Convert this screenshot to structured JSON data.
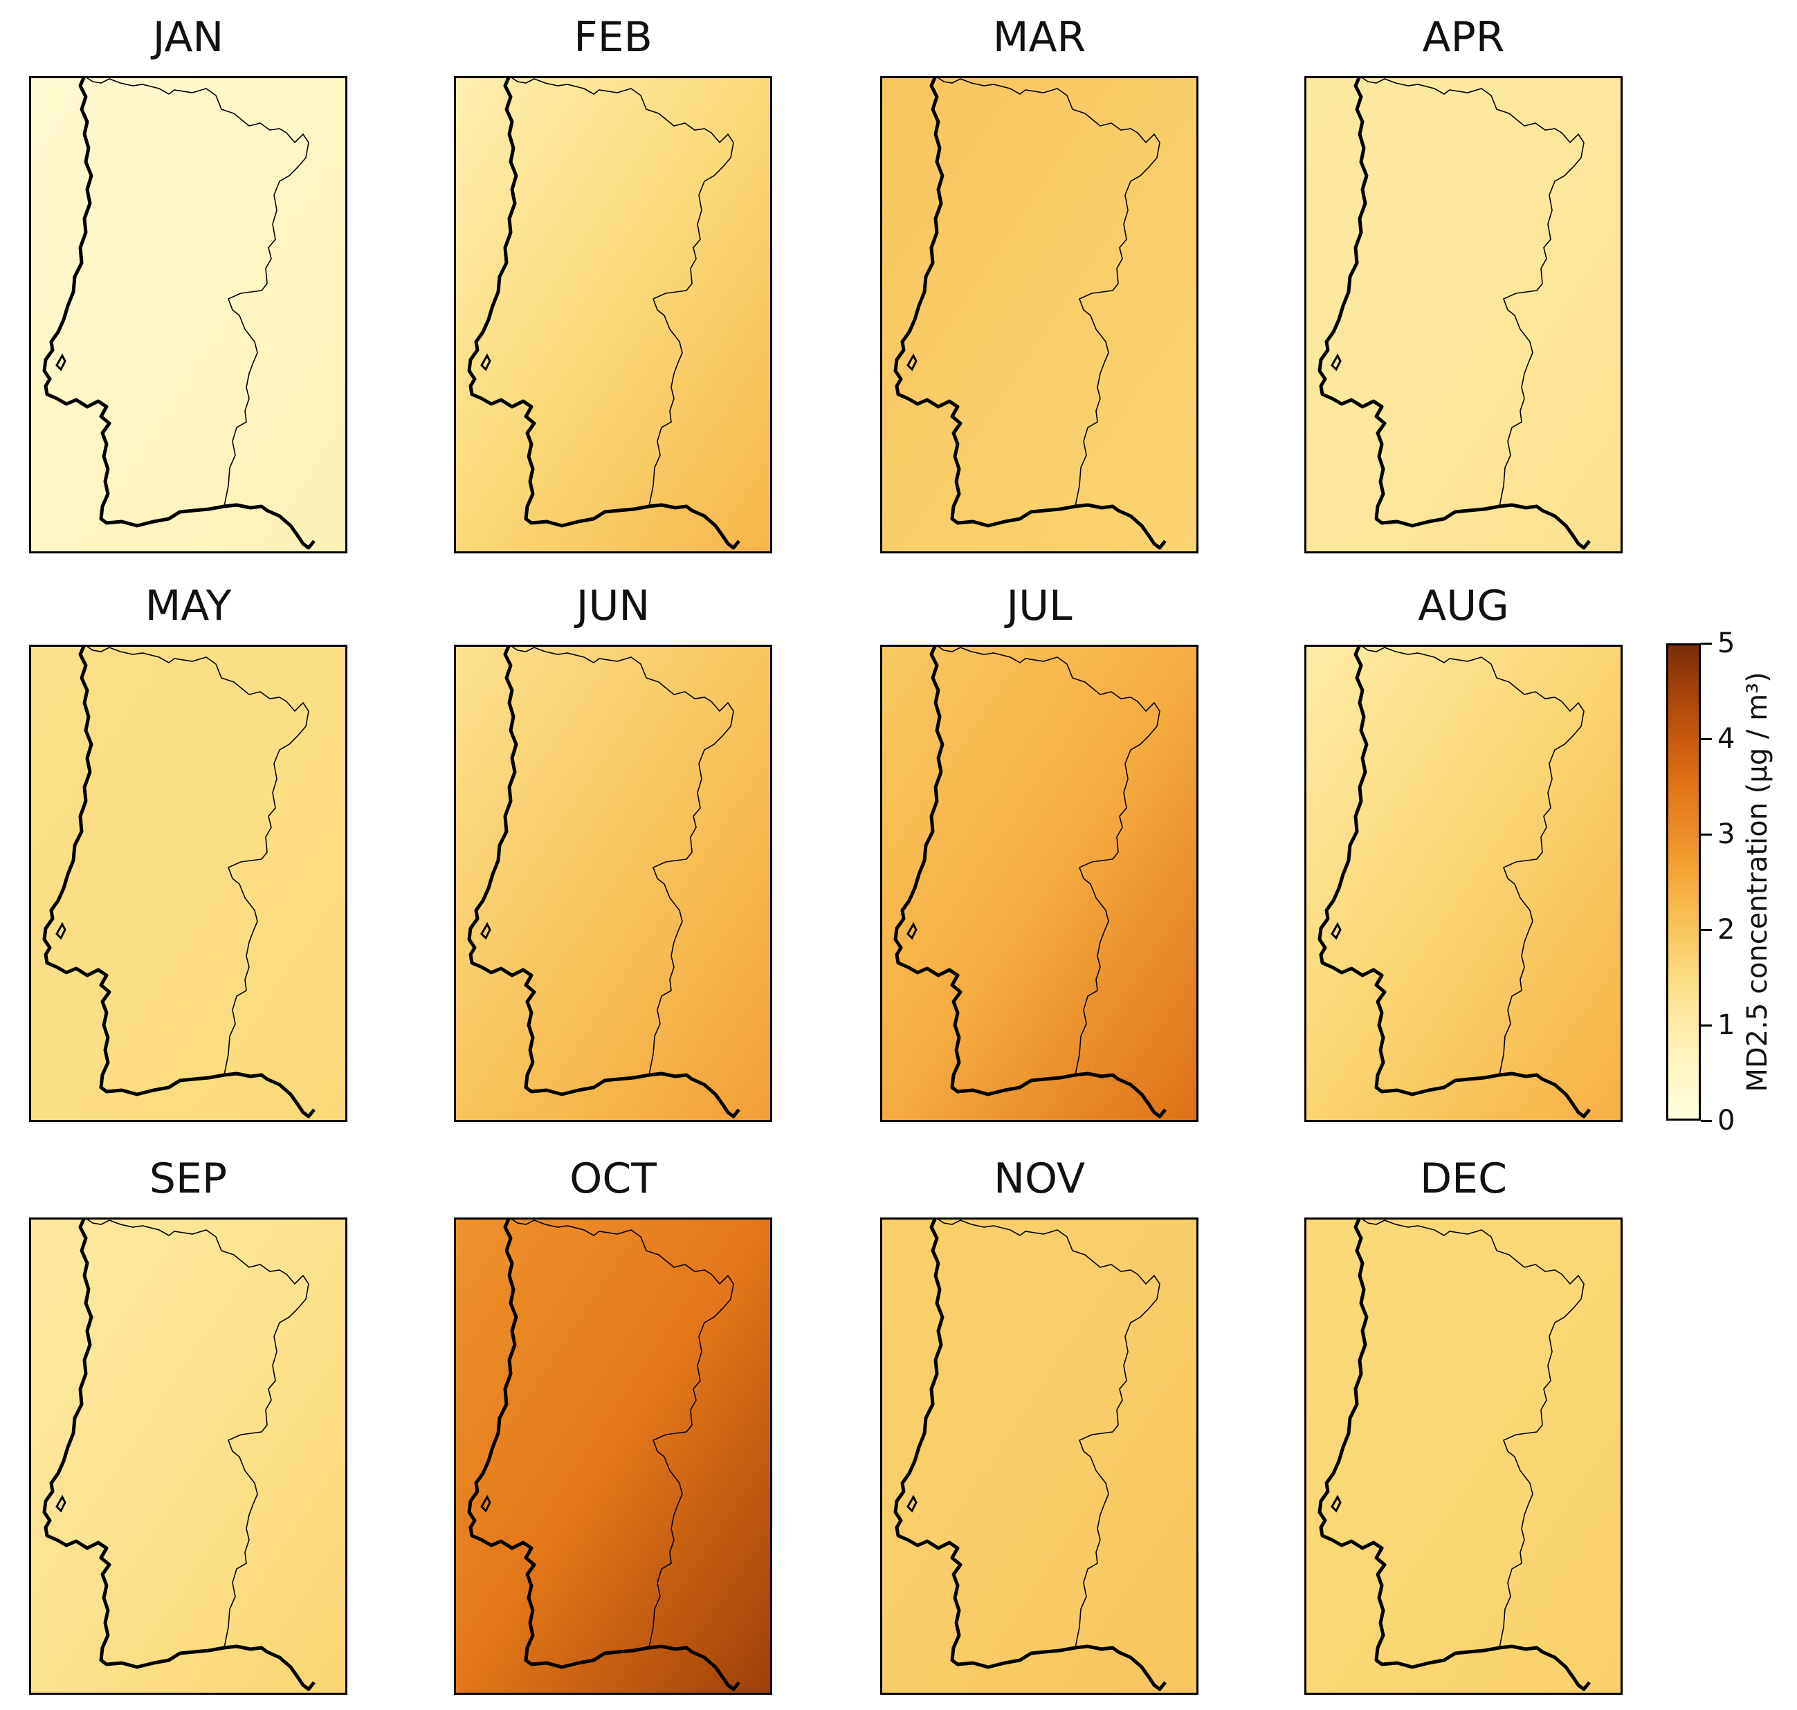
{
  "panels": [
    {
      "month": "JAN",
      "level": 0.6,
      "gradient": "west-light"
    },
    {
      "month": "FEB",
      "level": 1.1,
      "gradient": "south-east"
    },
    {
      "month": "MAR",
      "level": 1.7,
      "gradient": "uniform-west"
    },
    {
      "month": "APR",
      "level": 1.1,
      "gradient": "uniform"
    },
    {
      "month": "MAY",
      "level": 1.4,
      "gradient": "uniform"
    },
    {
      "month": "JUN",
      "level": 1.5,
      "gradient": "south-east"
    },
    {
      "month": "JUL",
      "level": 2.2,
      "gradient": "south-east-strong"
    },
    {
      "month": "AUG",
      "level": 1.2,
      "gradient": "south-east"
    },
    {
      "month": "SEP",
      "level": 1.3,
      "gradient": "east"
    },
    {
      "month": "OCT",
      "level": 3.2,
      "gradient": "south-east-strong"
    },
    {
      "month": "NOV",
      "level": 1.8,
      "gradient": "uniform"
    },
    {
      "month": "DEC",
      "level": 1.6,
      "gradient": "uniform"
    }
  ],
  "colorbar": {
    "label": "MD2.5 concentration (μg / m³)",
    "min": 0,
    "max": 5,
    "ticks": [
      "0",
      "1",
      "2",
      "3",
      "4",
      "5"
    ],
    "colors": [
      "#ffffe0",
      "#fdf1b4",
      "#fbd774",
      "#f6aa3c",
      "#e77d1b",
      "#c2520c",
      "#7a2c06"
    ]
  }
}
